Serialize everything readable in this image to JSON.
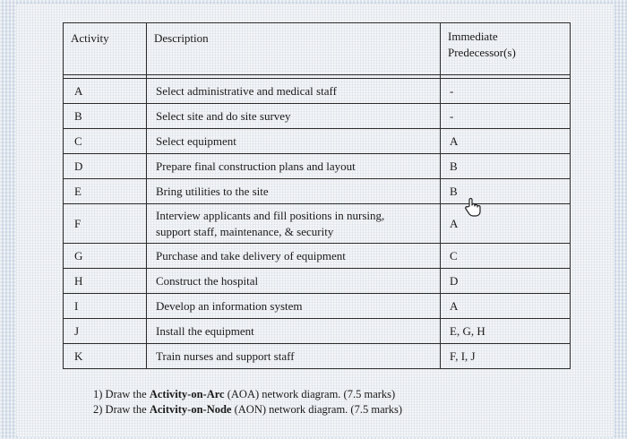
{
  "table": {
    "headers": {
      "activity": "Activity",
      "description": "Description",
      "predecessor_line1": "Immediate",
      "predecessor_line2": "Predecessor(s)"
    },
    "rows": [
      {
        "activity": "A",
        "description": "Select administrative and medical staff",
        "predecessor": "-"
      },
      {
        "activity": "B",
        "description": "Select site and do site survey",
        "predecessor": "-"
      },
      {
        "activity": "C",
        "description": "Select equipment",
        "predecessor": "A"
      },
      {
        "activity": "D",
        "description": "Prepare final construction plans and layout",
        "predecessor": "B"
      },
      {
        "activity": "E",
        "description": "Bring utilities to the site",
        "predecessor": "B"
      },
      {
        "activity": "F",
        "description_line1": "Interview applicants and fill positions in nursing,",
        "description_line2": "support staff, maintenance, & security",
        "predecessor": "A"
      },
      {
        "activity": "G",
        "description": "Purchase and take delivery of equipment",
        "predecessor": "C"
      },
      {
        "activity": "H",
        "description": "Construct the hospital",
        "predecessor": "D"
      },
      {
        "activity": "I",
        "description": "Develop an information system",
        "predecessor": "A"
      },
      {
        "activity": "J",
        "description": "Install the equipment",
        "predecessor": "E, G, H"
      },
      {
        "activity": "K",
        "description": "Train nurses and support staff",
        "predecessor": "F, I, J"
      }
    ]
  },
  "questions": {
    "q1_prefix": "1)  Draw the ",
    "q1_bold": "Activity-on-Arc",
    "q1_suffix": " (AOA) network diagram. (7.5 marks)",
    "q2_prefix": "2)  Draw the ",
    "q2_bold": "Acitvity-on-Node",
    "q2_suffix": " (AON) network diagram. (7.5 marks)"
  },
  "icons": {
    "cursor": "hand-pointer-icon"
  }
}
